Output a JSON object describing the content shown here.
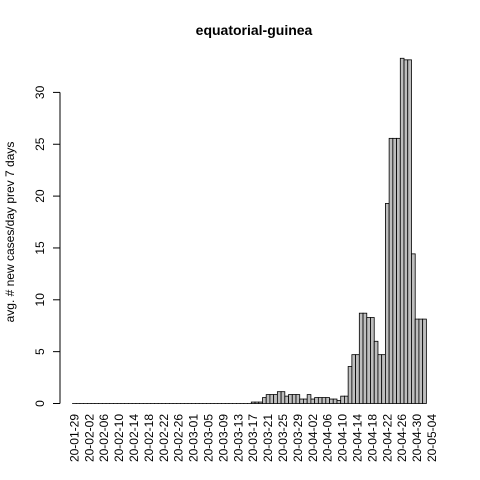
{
  "chart_data": {
    "type": "bar",
    "title": "equatorial-guinea",
    "xlabel": "",
    "ylabel": "avg. # new cases/day prev  7  days",
    "ylim": [
      0,
      34
    ],
    "yticks": [
      0,
      5,
      10,
      15,
      20,
      25,
      30
    ],
    "x_start": "20-01-29",
    "x_tick_labels": [
      "20-01-29",
      "20-02-02",
      "20-02-06",
      "20-02-10",
      "20-02-14",
      "20-02-18",
      "20-02-22",
      "20-02-26",
      "20-03-01",
      "20-03-05",
      "20-03-09",
      "20-03-13",
      "20-03-17",
      "20-03-21",
      "20-03-25",
      "20-03-29",
      "20-04-02",
      "20-04-06",
      "20-04-10",
      "20-04-14",
      "20-04-18",
      "20-04-22",
      "20-04-26",
      "20-04-30",
      "20-05-04"
    ],
    "values": [
      0,
      0,
      0,
      0,
      0,
      0,
      0,
      0,
      0,
      0,
      0,
      0,
      0,
      0,
      0,
      0,
      0,
      0,
      0,
      0,
      0,
      0,
      0,
      0,
      0,
      0,
      0,
      0,
      0,
      0,
      0,
      0,
      0,
      0,
      0,
      0,
      0,
      0,
      0,
      0,
      0,
      0,
      0,
      0,
      0,
      0,
      0,
      0,
      0.14,
      0.14,
      0.14,
      0.57,
      0.86,
      0.86,
      0.86,
      1.14,
      1.14,
      0.71,
      0.86,
      0.86,
      0.86,
      0.43,
      0.43,
      0.86,
      0.43,
      0.57,
      0.57,
      0.57,
      0.57,
      0.43,
      0.43,
      0.29,
      0.71,
      0.71,
      3.57,
      4.71,
      4.71,
      8.71,
      8.71,
      8.29,
      8.29,
      6.0,
      4.71,
      4.71,
      19.29,
      25.57,
      25.57,
      25.57,
      33.29,
      33.14,
      33.14,
      14.43,
      8.14,
      8.14,
      8.14
    ]
  }
}
